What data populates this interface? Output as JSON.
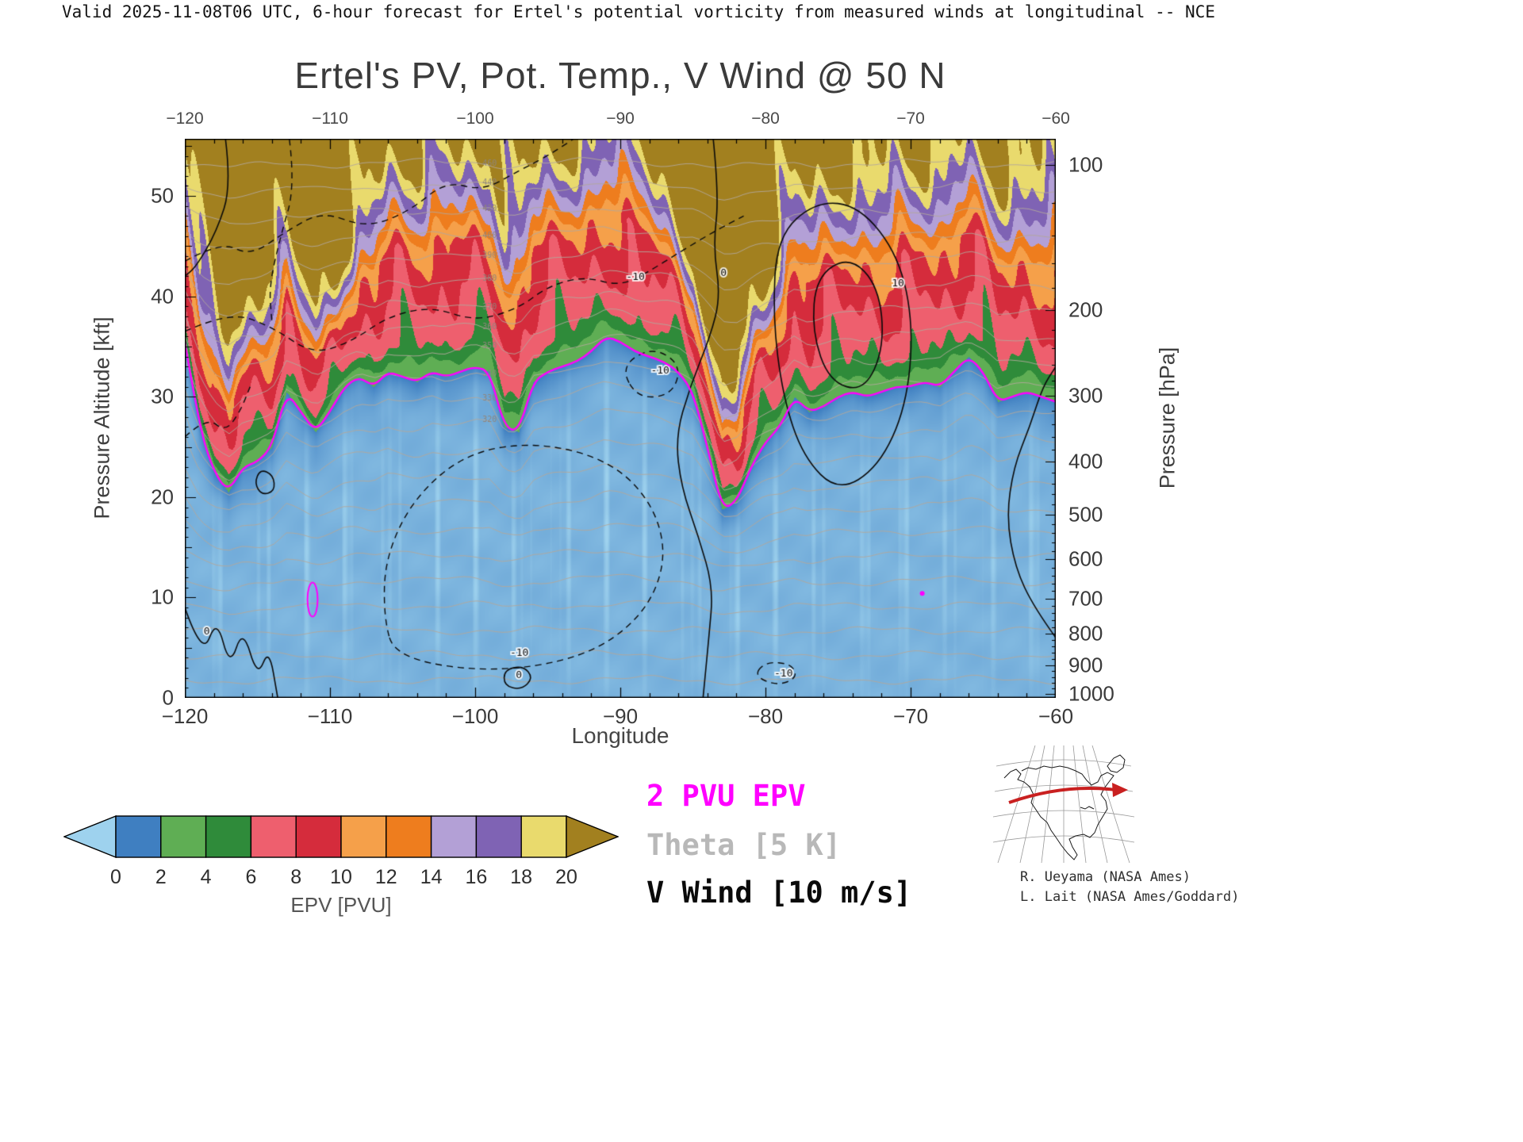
{
  "page": {
    "header_line": "Valid 2025-11-08T06 UTC, 6-hour forecast for Ertel's potential vorticity from measured winds at longitudinal -- NCE",
    "title": "Ertel's PV, Pot. Temp., V Wind @ 50 N"
  },
  "legend": {
    "pv_label": "2 PVU EPV",
    "pv_color": "#ff00ff",
    "theta_label": "Theta [5 K]",
    "theta_color": "#b8b8b8",
    "wind_label": "V Wind [10 m/s]",
    "wind_color": "#0a0a0a"
  },
  "credits": {
    "line1": "R. Ueyama (NASA Ames)",
    "line2": "L. Lait (NASA Ames/Goddard)"
  },
  "colorbar": {
    "label": "EPV [PVU]",
    "tick_labels": [
      "0",
      "2",
      "4",
      "6",
      "8",
      "10",
      "12",
      "14",
      "16",
      "18",
      "20"
    ],
    "under_color": "#9ed2ee",
    "over_color": "#a2801f",
    "segment_colors": [
      "#3f7fc1",
      "#5fae54",
      "#2f8b3a",
      "#ee5f6e",
      "#d52c3c",
      "#f5a04a",
      "#ee7d1e",
      "#b3a0d6",
      "#7f63b4",
      "#e9da6d"
    ]
  },
  "chart_data": {
    "type": "filled_contour_cross_section",
    "title": "Ertel's PV, Pot. Temp., V Wind @ 50 N",
    "xlabel": "Longitude",
    "ylabel_left": "Pressure Altitude [kft]",
    "ylabel_right": "Pressure [hPa]",
    "x_range": [
      -120,
      -60
    ],
    "y_range_kft": [
      0,
      55.7
    ],
    "x_ticks": [
      -120,
      -110,
      -100,
      -90,
      -80,
      -70,
      -60
    ],
    "x_minor_step": 2,
    "y_ticks_kft": [
      0,
      10,
      20,
      30,
      40,
      50
    ],
    "pressure_ticks_hpa": [
      100,
      200,
      300,
      400,
      500,
      600,
      700,
      800,
      900,
      1000
    ],
    "epv_levels": [
      0,
      2,
      4,
      6,
      8,
      10,
      12,
      14,
      16,
      18,
      20
    ],
    "epv_units": "PVU",
    "theta": {
      "interval_K": 5,
      "color": "#b3a79b",
      "labels": [
        320,
        330,
        340,
        350,
        360,
        370,
        380,
        390,
        400,
        420,
        440,
        460
      ],
      "label_lon": -99.6
    },
    "wind": {
      "interval_ms": 10
    },
    "pv2_contour": {
      "lon": [
        -120,
        -119,
        -118,
        -117,
        -116,
        -115,
        -114,
        -113,
        -112,
        -111,
        -110,
        -109,
        -108,
        -107,
        -106,
        -105,
        -104,
        -103,
        -102,
        -101,
        -100,
        -99,
        -98,
        -97,
        -96,
        -95,
        -94,
        -93,
        -92,
        -91,
        -90,
        -89,
        -88,
        -87,
        -86,
        -85,
        -84,
        -83,
        -82,
        -81,
        -80,
        -79,
        -78,
        -77,
        -76,
        -75,
        -74,
        -73,
        -72,
        -71,
        -70,
        -69,
        -68,
        -67,
        -66,
        -65,
        -64,
        -63,
        -62,
        -61,
        -60
      ],
      "alt_kft": [
        35.5,
        27,
        22.5,
        20.5,
        23,
        23.5,
        25,
        30.5,
        28.5,
        26.5,
        28.5,
        31,
        32,
        31,
        32.5,
        32,
        31.5,
        32.5,
        32,
        32.5,
        33,
        32.5,
        27,
        26.5,
        31.5,
        32.5,
        33,
        33.5,
        34.5,
        36,
        35.5,
        34.5,
        34,
        33.5,
        32.5,
        30.5,
        25,
        18.8,
        19.5,
        23,
        25.5,
        27,
        30,
        28.5,
        29,
        30,
        30.5,
        30,
        30.5,
        31,
        31,
        31.5,
        31,
        32.5,
        34,
        32.5,
        29.5,
        30,
        30.5,
        30,
        29.5
      ]
    },
    "pv2_extra_features": [
      {
        "type": "ellipse",
        "lon": -111.2,
        "alt_kft": 9.8,
        "rlon": 0.35,
        "ralt_kft": 1.7
      },
      {
        "type": "dot",
        "lon": -69.2,
        "alt_kft": 10.4
      }
    ],
    "wind_contours": [
      {
        "style": "solid",
        "closed": false,
        "label": "0",
        "label_at": [
          -83.1,
          42
        ],
        "points": [
          [
            -83.6,
            55.7
          ],
          [
            -83.2,
            50
          ],
          [
            -83.6,
            45
          ],
          [
            -83.1,
            40
          ],
          [
            -83.8,
            36
          ],
          [
            -85.2,
            31
          ],
          [
            -86.2,
            26
          ],
          [
            -85.8,
            21
          ],
          [
            -84.6,
            16
          ],
          [
            -83.6,
            11
          ],
          [
            -83.9,
            6
          ],
          [
            -84.3,
            0
          ]
        ]
      },
      {
        "style": "solid",
        "closed": true,
        "label": "10",
        "label_at": [
          -71.3,
          41
        ],
        "points": [
          [
            -79.2,
            46
          ],
          [
            -76.5,
            49.5
          ],
          [
            -73.5,
            49
          ],
          [
            -70.8,
            44
          ],
          [
            -69.8,
            37
          ],
          [
            -70.3,
            29
          ],
          [
            -72.2,
            23
          ],
          [
            -75.0,
            20.5
          ],
          [
            -77.4,
            24
          ],
          [
            -78.8,
            30
          ],
          [
            -79.5,
            38
          ]
        ]
      },
      {
        "style": "solid",
        "closed": true,
        "points": [
          [
            -76.5,
            42
          ],
          [
            -74.2,
            44
          ],
          [
            -72.2,
            41
          ],
          [
            -71.8,
            35
          ],
          [
            -73.2,
            30.5
          ],
          [
            -75.6,
            31.5
          ],
          [
            -76.8,
            36.5
          ]
        ]
      },
      {
        "style": "solid",
        "closed": false,
        "points": [
          [
            -60,
            6
          ],
          [
            -61.5,
            9
          ],
          [
            -62.8,
            13
          ],
          [
            -63.4,
            18
          ],
          [
            -62.9,
            23
          ],
          [
            -61.8,
            27
          ],
          [
            -60.9,
            31
          ],
          [
            -60,
            33
          ]
        ]
      },
      {
        "style": "solid",
        "closed": false,
        "label": "0",
        "label_at": [
          -118.7,
          6.3
        ],
        "points": [
          [
            -120,
            9
          ],
          [
            -118.8,
            4
          ],
          [
            -117.8,
            8
          ],
          [
            -116.9,
            3
          ],
          [
            -116,
            7
          ],
          [
            -115,
            2
          ],
          [
            -114.2,
            5
          ],
          [
            -113.6,
            0
          ]
        ]
      },
      {
        "style": "solid",
        "closed": true,
        "points": [
          [
            -114.8,
            22.8
          ],
          [
            -113.9,
            22.2
          ],
          [
            -113.8,
            20.6
          ],
          [
            -114.7,
            20.2
          ],
          [
            -115.2,
            21.4
          ]
        ]
      },
      {
        "style": "solid",
        "closed": true,
        "label": "0",
        "label_at": [
          -97.2,
          2.0
        ],
        "points": [
          [
            -98,
            2.8
          ],
          [
            -96.7,
            3.2
          ],
          [
            -96,
            2
          ],
          [
            -96.8,
            0.8
          ],
          [
            -98,
            1.2
          ]
        ]
      },
      {
        "style": "solid",
        "closed": false,
        "points": [
          [
            -117.2,
            55.7
          ],
          [
            -116.8,
            51
          ],
          [
            -117.8,
            46.5
          ],
          [
            -119.2,
            43
          ],
          [
            -120,
            42
          ]
        ]
      },
      {
        "style": "dashed",
        "closed": true,
        "label": "-10",
        "label_at": [
          -97.6,
          4.2
        ],
        "points": [
          [
            -105.5,
            4
          ],
          [
            -99,
            2.5
          ],
          [
            -92.5,
            4
          ],
          [
            -88.5,
            8
          ],
          [
            -86.8,
            13.5
          ],
          [
            -87.6,
            19
          ],
          [
            -90.5,
            23.5
          ],
          [
            -95.5,
            25.5
          ],
          [
            -100.5,
            24.5
          ],
          [
            -104.2,
            20
          ],
          [
            -106.2,
            14
          ],
          [
            -106.3,
            8
          ]
        ]
      },
      {
        "style": "dashed",
        "closed": false,
        "label": "-10",
        "label_at": [
          -89.6,
          41.6
        ],
        "points": [
          [
            -120,
            36.5
          ],
          [
            -117,
            38.5
          ],
          [
            -114,
            37
          ],
          [
            -111.2,
            34.2
          ],
          [
            -108.5,
            35.5
          ],
          [
            -106,
            38
          ],
          [
            -103,
            39
          ],
          [
            -100,
            37.5
          ],
          [
            -97,
            38.8
          ],
          [
            -95,
            41
          ],
          [
            -92.5,
            42
          ],
          [
            -90,
            41
          ],
          [
            -88,
            42.5
          ],
          [
            -85.8,
            44.5
          ],
          [
            -83.5,
            46.5
          ],
          [
            -81.5,
            48
          ]
        ]
      },
      {
        "style": "dashed",
        "closed": false,
        "points": [
          [
            -120,
            43.5
          ],
          [
            -117.5,
            45.5
          ],
          [
            -115.5,
            44
          ],
          [
            -113,
            46.5
          ],
          [
            -110.5,
            48.5
          ],
          [
            -107.5,
            46.8
          ],
          [
            -104.5,
            48.5
          ],
          [
            -102,
            51.5
          ],
          [
            -99.5,
            50.5
          ],
          [
            -97,
            52.5
          ],
          [
            -95,
            54
          ],
          [
            -93.2,
            55.7
          ]
        ]
      },
      {
        "style": "dashed",
        "closed": false,
        "points": [
          [
            -112.8,
            55.7
          ],
          [
            -112.4,
            51
          ],
          [
            -113.4,
            46
          ],
          [
            -114.2,
            41
          ],
          [
            -114,
            37.5
          ]
        ]
      },
      {
        "style": "dashed",
        "closed": true,
        "label": "-10",
        "label_at": [
          -79.4,
          2.1
        ],
        "points": [
          [
            -80.8,
            2.2
          ],
          [
            -79.2,
            1.2
          ],
          [
            -77.8,
            2
          ],
          [
            -78.2,
            3.4
          ],
          [
            -80,
            3.6
          ]
        ]
      },
      {
        "style": "dashed",
        "closed": true,
        "label": "-10",
        "label_at": [
          -87.9,
          32.3
        ],
        "points": [
          [
            -90,
            33
          ],
          [
            -87.8,
            35
          ],
          [
            -85.8,
            33.2
          ],
          [
            -86.4,
            30.2
          ],
          [
            -88.8,
            29.8
          ]
        ]
      },
      {
        "style": "dashed",
        "closed": false,
        "points": [
          [
            -120,
            26
          ],
          [
            -118.5,
            28
          ],
          [
            -117.2,
            26.5
          ],
          [
            -116.2,
            28.5
          ],
          [
            -115.5,
            31
          ]
        ]
      }
    ]
  }
}
